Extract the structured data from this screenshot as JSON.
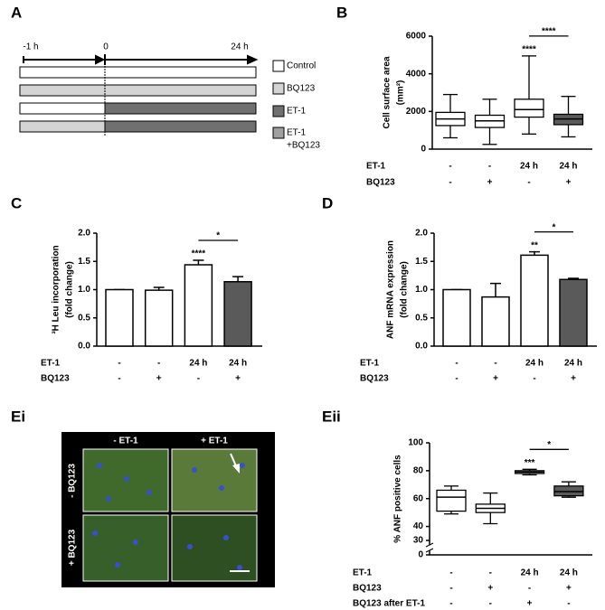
{
  "panel_a": {
    "label": "A",
    "times": [
      "-1 h",
      "0",
      "24 h"
    ],
    "legend": [
      "Control",
      "BQ123",
      "ET-1",
      [
        "ET-1",
        "+BQ123"
      ]
    ]
  },
  "panel_ei": {
    "label": "Ei",
    "columns": [
      "- ET-1",
      "+ ET-1"
    ],
    "rows": [
      "- BQ123",
      "+ BQ123"
    ]
  },
  "chart_data": [
    {
      "type": "box",
      "panel_label": "B",
      "ylabel": [
        "Cell surface area",
        "(mm²)"
      ],
      "categories": [
        null,
        null,
        null,
        null
      ],
      "boxes": [
        {
          "min": 600,
          "q1": 1250,
          "median": 1600,
          "q3": 1950,
          "max": 2900
        },
        {
          "min": 250,
          "q1": 1150,
          "median": 1500,
          "q3": 1800,
          "max": 2650
        },
        {
          "min": 800,
          "q1": 1700,
          "median": 2100,
          "q3": 2650,
          "max": 4950
        },
        {
          "min": 650,
          "q1": 1300,
          "median": 1600,
          "q3": 1850,
          "max": 2800
        }
      ],
      "colors": [
        "#ffffff",
        "#ffffff",
        "#ffffff",
        "#5a5a5a"
      ],
      "ylim": [
        0,
        6000
      ],
      "yticks": [
        0,
        2000,
        4000,
        6000
      ],
      "conditions": [
        {
          "name": "ET-1",
          "values": [
            "-",
            "-",
            "24 h",
            "24 h"
          ]
        },
        {
          "name": "BQ123",
          "values": [
            "-",
            "+",
            "-",
            "+"
          ]
        }
      ],
      "annotations": [
        {
          "text": "****",
          "category": 2
        }
      ],
      "brackets": [
        {
          "text": "****",
          "from": 2,
          "to": 3
        }
      ]
    },
    {
      "type": "bar",
      "panel_label": "C",
      "ylabel": [
        "³H Leu incorporation",
        "(fold change)"
      ],
      "categories": [
        null,
        null,
        null,
        null
      ],
      "values": [
        1.0,
        0.99,
        1.44,
        1.14
      ],
      "errors": [
        0,
        0.05,
        0.08,
        0.09
      ],
      "colors": [
        "#ffffff",
        "#ffffff",
        "#ffffff",
        "#5a5a5a"
      ],
      "ylim": [
        0,
        2
      ],
      "yticks": [
        {
          "value": 0,
          "label": "0.0"
        },
        0.5,
        {
          "value": 1,
          "label": "1.0"
        },
        1.5,
        {
          "value": 2,
          "label": "2.0"
        }
      ],
      "conditions": [
        {
          "name": "ET-1",
          "values": [
            "-",
            "-",
            "24 h",
            "24 h"
          ]
        },
        {
          "name": "BQ123",
          "values": [
            "-",
            "+",
            "-",
            "+"
          ]
        }
      ],
      "annotations": [
        {
          "text": "****",
          "category": 2
        }
      ],
      "brackets": [
        {
          "text": "*",
          "from": 2,
          "to": 3
        }
      ]
    },
    {
      "type": "bar",
      "panel_label": "D",
      "ylabel": [
        "ANF mRNA expression",
        "(fold change)"
      ],
      "categories": [
        null,
        null,
        null,
        null
      ],
      "values": [
        1.0,
        0.87,
        1.61,
        1.18
      ],
      "errors": [
        0,
        0.24,
        0.06,
        0.02
      ],
      "colors": [
        "#ffffff",
        "#ffffff",
        "#ffffff",
        "#5a5a5a"
      ],
      "ylim": [
        0,
        2
      ],
      "yticks": [
        {
          "value": 0,
          "label": "0.0"
        },
        0.5,
        {
          "value": 1,
          "label": "1.0"
        },
        1.5,
        {
          "value": 2,
          "label": "2.0"
        }
      ],
      "conditions": [
        {
          "name": "ET-1",
          "values": [
            "-",
            "-",
            "24 h",
            "24 h"
          ]
        },
        {
          "name": "BQ123",
          "values": [
            "-",
            "+",
            "-",
            "+"
          ]
        }
      ],
      "annotations": [
        {
          "text": "**",
          "category": 2
        }
      ],
      "brackets": [
        {
          "text": "*",
          "from": 2,
          "to": 3
        }
      ]
    },
    {
      "type": "box",
      "panel_label": "Eii",
      "ylabel": [
        "% ANF positive cells"
      ],
      "categories": [
        null,
        null,
        null,
        null
      ],
      "boxes": [
        {
          "min": 49,
          "q1": 51,
          "median": 61,
          "q3": 66,
          "max": 69
        },
        {
          "min": 42,
          "q1": 50,
          "median": 53,
          "q3": 56,
          "max": 64
        },
        {
          "min": 77,
          "q1": 78,
          "median": 79,
          "q3": 80,
          "max": 81
        },
        {
          "min": 61,
          "q1": 62,
          "median": 65,
          "q3": 69,
          "max": 72
        }
      ],
      "colors": [
        "#ffffff",
        "#ffffff",
        "#ffffff",
        "#5a5a5a"
      ],
      "ylim": [
        0,
        100
      ],
      "yticks": [
        0,
        30,
        40,
        60,
        80,
        100
      ],
      "axis_break": [
        0,
        30
      ],
      "conditions": [
        {
          "name": "ET-1",
          "values": [
            "-",
            "-",
            "24 h",
            "24 h"
          ]
        },
        {
          "name": "BQ123",
          "values": [
            "-",
            "+",
            "-",
            "+"
          ]
        },
        {
          "name": "BQ123 after ET-1",
          "values": [
            "-",
            "-",
            "+",
            "-"
          ]
        }
      ],
      "annotations": [
        {
          "text": "***",
          "category": 2
        }
      ],
      "brackets": [
        {
          "text": "*",
          "from": 2,
          "to": 3
        }
      ]
    }
  ]
}
